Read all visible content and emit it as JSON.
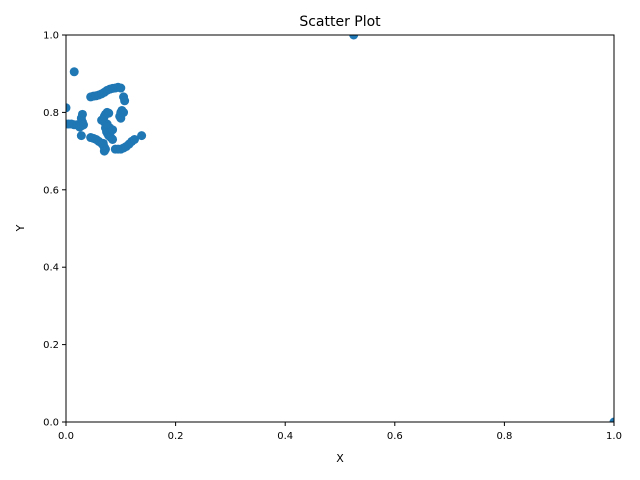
{
  "chart_data": {
    "type": "scatter",
    "title": "Scatter Plot",
    "xlabel": "X",
    "ylabel": "Y",
    "xlim": [
      0,
      1
    ],
    "ylim": [
      0,
      1
    ],
    "xticks": [
      0.0,
      0.2,
      0.4,
      0.6,
      0.8,
      1.0
    ],
    "yticks": [
      0.0,
      0.2,
      0.4,
      0.6,
      0.8,
      1.0
    ],
    "xtick_labels": [
      "0.0",
      "0.2",
      "0.4",
      "0.6",
      "0.8",
      "1.0"
    ],
    "ytick_labels": [
      "0.0",
      "0.2",
      "0.4",
      "0.6",
      "0.8",
      "1.0"
    ],
    "grid": false,
    "marker_color": "#1f77b4",
    "series": [
      {
        "x": [
          0.525,
          1.0,
          0.015,
          0.0,
          0.0,
          0.005,
          0.01,
          0.015,
          0.02,
          0.025,
          0.028,
          0.03,
          0.03,
          0.028,
          0.025,
          0.028,
          0.032,
          0.045,
          0.05,
          0.055,
          0.06,
          0.065,
          0.07,
          0.075,
          0.08,
          0.085,
          0.09,
          0.095,
          0.1,
          0.105,
          0.107,
          0.07,
          0.072,
          0.075,
          0.078,
          0.07,
          0.072,
          0.074,
          0.076,
          0.078,
          0.08,
          0.082,
          0.085,
          0.1,
          0.102,
          0.105,
          0.1,
          0.098,
          0.045,
          0.05,
          0.055,
          0.06,
          0.065,
          0.068,
          0.07,
          0.072,
          0.07,
          0.068,
          0.09,
          0.095,
          0.1,
          0.105,
          0.11,
          0.115,
          0.12,
          0.125,
          0.138,
          0.08,
          0.085,
          0.075,
          0.065
        ],
        "y": [
          1.0,
          0.0,
          0.905,
          0.812,
          0.77,
          0.77,
          0.77,
          0.768,
          0.768,
          0.77,
          0.785,
          0.795,
          0.775,
          0.765,
          0.762,
          0.74,
          0.768,
          0.84,
          0.842,
          0.843,
          0.845,
          0.848,
          0.852,
          0.857,
          0.86,
          0.862,
          0.863,
          0.865,
          0.863,
          0.84,
          0.83,
          0.79,
          0.795,
          0.8,
          0.798,
          0.775,
          0.76,
          0.75,
          0.745,
          0.74,
          0.738,
          0.735,
          0.73,
          0.8,
          0.805,
          0.8,
          0.785,
          0.79,
          0.735,
          0.733,
          0.73,
          0.725,
          0.72,
          0.715,
          0.71,
          0.705,
          0.7,
          0.72,
          0.705,
          0.705,
          0.705,
          0.708,
          0.712,
          0.718,
          0.725,
          0.73,
          0.74,
          0.76,
          0.755,
          0.77,
          0.78
        ]
      }
    ]
  }
}
